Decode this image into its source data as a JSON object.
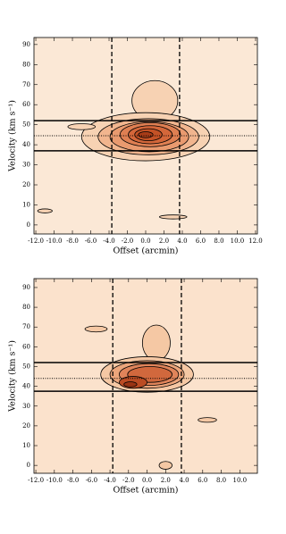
{
  "chart_data": [
    {
      "type": "contour",
      "xlabel": "Offset (arcmin)",
      "ylabel": "Velocity (km s⁻¹)",
      "xlim": [
        -12.2,
        12.2
      ],
      "ylim": [
        -4.5,
        93.5
      ],
      "xticks": [
        {
          "value": -12,
          "label": "-12.0"
        },
        {
          "value": -10,
          "label": "-10.0"
        },
        {
          "value": -8,
          "label": "-8.0"
        },
        {
          "value": -6,
          "label": "-6.0"
        },
        {
          "value": -4,
          "label": "-4.0"
        },
        {
          "value": -2,
          "label": "-2.0"
        },
        {
          "value": 0,
          "label": "0.0"
        },
        {
          "value": 2,
          "label": "2.0"
        },
        {
          "value": 4,
          "label": "4.0"
        },
        {
          "value": 6,
          "label": "6.0"
        },
        {
          "value": 8,
          "label": "8.0"
        },
        {
          "value": 10,
          "label": "10.0"
        },
        {
          "value": 12,
          "label": "12.0"
        }
      ],
      "yticks": [
        0,
        10,
        20,
        30,
        40,
        50,
        60,
        70,
        80,
        90
      ],
      "background": "#fbe8d6",
      "level_colors": [
        "#f7d2b3",
        "#f1b58e",
        "#e99a6f",
        "#df7f52",
        "#d4673a",
        "#c45226",
        "#a83c18"
      ],
      "contours": [
        {
          "level": 0,
          "x": 1,
          "y": 62,
          "rx": 2.5,
          "ry": 10
        },
        {
          "level": 0,
          "x": 0,
          "y": 44,
          "rx": 7,
          "ry": 12
        },
        {
          "level": 1,
          "x": 0.3,
          "y": 44,
          "rx": 5.5,
          "ry": 9
        },
        {
          "level": 2,
          "x": 0.4,
          "y": 44,
          "rx": 4.3,
          "ry": 7.5
        },
        {
          "level": 3,
          "x": 0.5,
          "y": 45,
          "rx": 3.3,
          "ry": 6
        },
        {
          "level": 4,
          "x": 0.5,
          "y": 45,
          "rx": 2.4,
          "ry": 4.5
        },
        {
          "level": 5,
          "x": 0.3,
          "y": 45,
          "rx": 1.5,
          "ry": 3
        },
        {
          "level": 6,
          "x": 0,
          "y": 45,
          "rx": 0.8,
          "ry": 1.5
        },
        {
          "level": 0,
          "x": -7,
          "y": 49,
          "rx": 1.5,
          "ry": 1.5
        },
        {
          "level": 0,
          "x": 3,
          "y": 4,
          "rx": 1.5,
          "ry": 1
        },
        {
          "level": 0,
          "x": -11,
          "y": 7,
          "rx": 0.8,
          "ry": 1
        }
      ],
      "hlines_solid": [
        52,
        37
      ],
      "hline_dotted": 44.5,
      "vlines_dashed": [
        -3.7,
        3.7
      ]
    },
    {
      "type": "contour",
      "xlabel": "Offset (arcmin)",
      "ylabel": "Velocity (km s⁻¹)",
      "xlim": [
        -12.2,
        11.9
      ],
      "ylim": [
        -4,
        94.5
      ],
      "xticks": [
        {
          "value": -12,
          "label": "-12.0"
        },
        {
          "value": -10,
          "label": "-10.0"
        },
        {
          "value": -8,
          "label": "-8.0"
        },
        {
          "value": -6,
          "label": "-6.0"
        },
        {
          "value": -4,
          "label": "-4.0"
        },
        {
          "value": -2,
          "label": "-2.0"
        },
        {
          "value": 0,
          "label": "0.0"
        },
        {
          "value": 2,
          "label": "2.0"
        },
        {
          "value": 4,
          "label": "4.0"
        },
        {
          "value": 6,
          "label": "6.0"
        },
        {
          "value": 8,
          "label": "8.0"
        },
        {
          "value": 10,
          "label": "10.0"
        }
      ],
      "yticks": [
        0,
        10,
        20,
        30,
        40,
        50,
        60,
        70,
        80,
        90
      ],
      "background": "#fbe2cc",
      "level_colors": [
        "#f5c8a4",
        "#eca57b",
        "#e0845a",
        "#d1683d",
        "#bb4c24",
        "#9a3414"
      ],
      "contours": [
        {
          "level": 0,
          "x": 1,
          "y": 62,
          "rx": 1.5,
          "ry": 9
        },
        {
          "level": 0,
          "x": 0,
          "y": 46,
          "rx": 5,
          "ry": 9
        },
        {
          "level": 1,
          "x": 0,
          "y": 46,
          "rx": 4,
          "ry": 7
        },
        {
          "level": 2,
          "x": 0.2,
          "y": 46,
          "rx": 3.2,
          "ry": 5.5
        },
        {
          "level": 3,
          "x": 0.3,
          "y": 46,
          "rx": 2.4,
          "ry": 4
        },
        {
          "level": 4,
          "x": -1.5,
          "y": 42,
          "rx": 1.5,
          "ry": 3
        },
        {
          "level": 5,
          "x": -1.8,
          "y": 41,
          "rx": 0.7,
          "ry": 1.3
        },
        {
          "level": 0,
          "x": -5.5,
          "y": 69,
          "rx": 1.2,
          "ry": 1.5
        },
        {
          "level": 0,
          "x": 2,
          "y": 0,
          "rx": 0.7,
          "ry": 2
        },
        {
          "level": 0,
          "x": 6.5,
          "y": 23,
          "rx": 1,
          "ry": 1.2
        }
      ],
      "hlines_solid": [
        52,
        37.5
      ],
      "hline_dotted": 44,
      "vlines_dashed": [
        -3.7,
        3.7
      ]
    }
  ]
}
